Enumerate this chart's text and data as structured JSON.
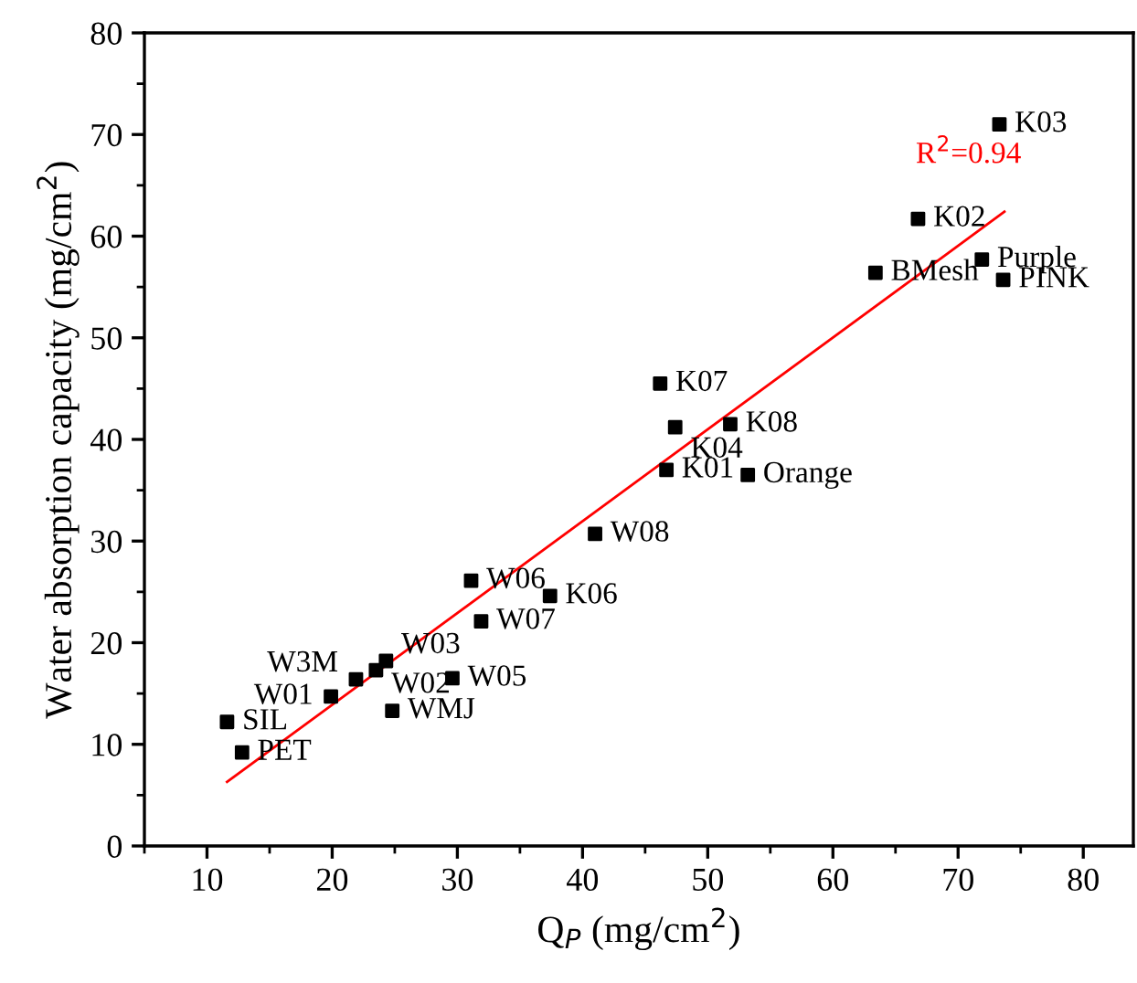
{
  "chart_data": {
    "type": "scatter",
    "xlabel": "Q$_{P}$ (mg/cm$^{2}$)",
    "ylabel": "Water absorption capacity (mg/cm$^{2}$)",
    "xlim": [
      5,
      84
    ],
    "ylim": [
      0,
      80
    ],
    "xticks": [
      10,
      20,
      30,
      40,
      50,
      60,
      70,
      80
    ],
    "yticks": [
      0,
      10,
      20,
      30,
      40,
      50,
      60,
      70,
      80
    ],
    "grid": false,
    "legend": false,
    "marker": "square",
    "series": [
      {
        "color": "#000000",
        "x": [
          11.6,
          12.8,
          19.9,
          21.9,
          23.5,
          24.3,
          24.8,
          29.6,
          31.1,
          31.9,
          37.4,
          41.0,
          46.7,
          46.2,
          47.4,
          51.8,
          53.2,
          63.4,
          66.8,
          71.9,
          73.6,
          73.3
        ],
        "values": [
          12.2,
          9.2,
          14.7,
          16.4,
          17.3,
          18.2,
          13.3,
          16.5,
          26.1,
          22.1,
          24.6,
          30.7,
          37.0,
          45.5,
          41.2,
          41.5,
          36.5,
          56.4,
          61.7,
          57.7,
          55.7,
          71.0
        ]
      },
      {
        "type": "line",
        "color": "#ff0000",
        "line_style": "solid",
        "marker": "none",
        "x": [
          11.6,
          73.7
        ],
        "values": [
          6.3,
          62.4
        ]
      }
    ],
    "annotations": [
      {
        "text": "SIL",
        "x": 11.6,
        "y": 12.2
      },
      {
        "text": "PET",
        "x": 12.8,
        "y": 9.2
      },
      {
        "text": "W01",
        "x": 19.9,
        "y": 14.7
      },
      {
        "text": "W3M",
        "x": 21.9,
        "y": 16.4
      },
      {
        "text": "W02",
        "x": 23.5,
        "y": 17.3
      },
      {
        "text": "W03",
        "x": 24.3,
        "y": 18.2
      },
      {
        "text": "WMJ",
        "x": 24.8,
        "y": 13.3
      },
      {
        "text": "W05",
        "x": 29.6,
        "y": 16.5
      },
      {
        "text": "W06",
        "x": 31.1,
        "y": 26.1
      },
      {
        "text": "W07",
        "x": 31.9,
        "y": 22.1
      },
      {
        "text": "K06",
        "x": 37.4,
        "y": 24.6
      },
      {
        "text": "W08",
        "x": 41.0,
        "y": 30.7
      },
      {
        "text": "K01",
        "x": 46.7,
        "y": 37.0
      },
      {
        "text": "K07",
        "x": 46.2,
        "y": 45.5
      },
      {
        "text": "K04",
        "x": 47.4,
        "y": 41.2
      },
      {
        "text": "K08",
        "x": 51.8,
        "y": 41.5
      },
      {
        "text": "Orange",
        "x": 53.2,
        "y": 36.5
      },
      {
        "text": "BMesh",
        "x": 63.4,
        "y": 56.4
      },
      {
        "text": "K02",
        "x": 66.8,
        "y": 61.7
      },
      {
        "text": "Purple",
        "x": 71.9,
        "y": 57.7
      },
      {
        "text": "PINK",
        "x": 73.6,
        "y": 55.7
      },
      {
        "text": "K03",
        "x": 73.3,
        "y": 71.0
      },
      "R$^{2}$=0.94"
    ]
  }
}
